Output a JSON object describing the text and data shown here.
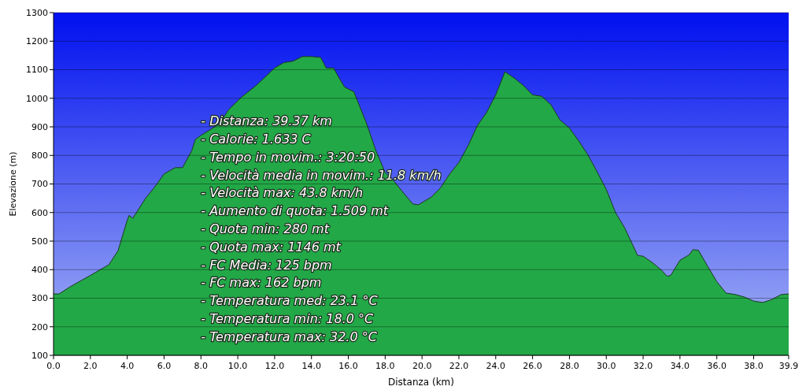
{
  "chart_data": {
    "type": "area",
    "xlabel": "Distanza  (km)",
    "ylabel": "Elevazione (m)",
    "x": [
      0,
      0.3,
      0.9,
      2.0,
      3.0,
      3.5,
      4.0,
      4.1,
      4.3,
      5.0,
      5.5,
      6.0,
      6.6,
      7.0,
      7.5,
      7.7,
      8.0,
      9.0,
      9.5,
      10.2,
      11.0,
      12.0,
      12.5,
      13.0,
      13.5,
      14.0,
      14.5,
      14.8,
      15.2,
      15.5,
      15.8,
      16.3,
      17.0,
      17.5,
      18.0,
      18.5,
      19.0,
      19.5,
      19.8,
      20.5,
      21.0,
      21.5,
      22.0,
      22.5,
      23.0,
      23.5,
      24.0,
      24.5,
      25.0,
      25.5,
      26.0,
      26.5,
      27.0,
      27.5,
      28.0,
      28.5,
      29.0,
      29.5,
      30.0,
      30.5,
      31.0,
      31.7,
      32.0,
      32.5,
      33.0,
      33.3,
      33.5,
      34.0,
      34.5,
      34.7,
      35.0,
      35.5,
      36.0,
      36.5,
      37.0,
      37.5,
      38.0,
      38.5,
      39.0,
      39.5,
      39.9
    ],
    "series": [
      {
        "color": "#22a847",
        "values": [
          315,
          315,
          340,
          380,
          417,
          466,
          573,
          590,
          580,
          650,
          690,
          735,
          757,
          757,
          816,
          856,
          870,
          910,
          960,
          1004,
          1045,
          1106,
          1125,
          1130,
          1146,
          1146,
          1143,
          1106,
          1106,
          1071,
          1039,
          1023,
          910,
          816,
          740,
          708,
          668,
          630,
          627,
          654,
          686,
          735,
          775,
          834,
          904,
          950,
          1012,
          1093,
          1071,
          1045,
          1012,
          1007,
          977,
          923,
          896,
          851,
          802,
          743,
          681,
          600,
          546,
          450,
          447,
          425,
          398,
          377,
          380,
          433,
          452,
          470,
          468,
          412,
          358,
          318,
          313,
          304,
          290,
          285,
          296,
          313,
          315
        ]
      }
    ],
    "xlim": [
      0,
      39.9
    ],
    "xticks": [
      {
        "value": 0,
        "label": "0.0"
      },
      {
        "value": 2,
        "label": "2.0"
      },
      {
        "value": 4,
        "label": "4.0"
      },
      {
        "value": 6,
        "label": "6.0"
      },
      {
        "value": 8,
        "label": "8.0"
      },
      {
        "value": 10,
        "label": "10.0"
      },
      {
        "value": 12,
        "label": "12.0"
      },
      {
        "value": 14,
        "label": "14.0"
      },
      {
        "value": 16,
        "label": "16.0"
      },
      {
        "value": 18,
        "label": "18.0"
      },
      {
        "value": 20,
        "label": "20.0"
      },
      {
        "value": 22,
        "label": "22.0"
      },
      {
        "value": 24,
        "label": "24.0"
      },
      {
        "value": 26,
        "label": "26.0"
      },
      {
        "value": 28,
        "label": "28.0"
      },
      {
        "value": 30,
        "label": "30.0"
      },
      {
        "value": 32,
        "label": "32.0"
      },
      {
        "value": 34,
        "label": "34.0"
      },
      {
        "value": 36,
        "label": "36.0"
      },
      {
        "value": 38,
        "label": "38.0"
      },
      39.9
    ],
    "ylim": [
      100,
      1300
    ],
    "yticks": [
      100,
      200,
      300,
      400,
      500,
      600,
      700,
      800,
      900,
      1000,
      1100,
      1200,
      1300
    ],
    "grid": "y",
    "annotations": [
      "- Distanza: 39.37 km",
      "- Calorie: 1.633 C",
      "- Tempo in movim.: 3:20:50",
      "- Velocità media in movim.: 11.8 km/h",
      "- Velocità max: 43.8 km/h",
      "- Aumento di quota: 1.509 mt",
      "- Quota min: 280 mt",
      "- Quota max: 1146 mt",
      "- FC Media: 125 bpm",
      "- FC max: 162 bpm",
      "- Temperatura med: 23.1 °C",
      "- Temperatura min: 18.0 °C",
      "- Temperatura max: 32.0 °C"
    ]
  }
}
